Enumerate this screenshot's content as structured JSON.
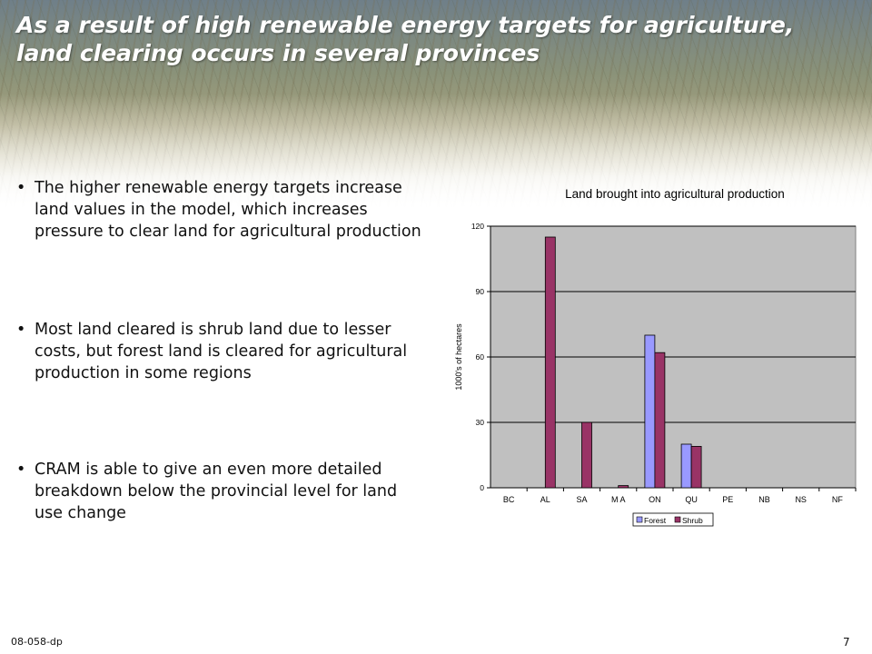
{
  "slide": {
    "title_lines": [
      "As a result of high renewable energy targets for agriculture,",
      "land clearing occurs in several provinces"
    ],
    "bullets": [
      "The higher renewable energy targets increase land values in the model, which increases pressure to clear land for agricultural production",
      "Most land cleared is shrub land due to lesser costs, but forest land is cleared for agricultural production in some regions",
      "CRAM is able to give an even more detailed breakdown below the provincial level for land use change"
    ],
    "bullet_symbol": "•",
    "footer_code": "08-058-dp",
    "page_number": "7"
  },
  "chart_data": {
    "type": "bar",
    "title": "Land brought into agricultural production",
    "ylabel": "1000's of hectares",
    "xlabel": "",
    "categories": [
      "BC",
      "AL",
      "SA",
      "M A",
      "ON",
      "QU",
      "PE",
      "NB",
      "NS",
      "NF"
    ],
    "series": [
      {
        "name": "Forest",
        "color": "#9999ff",
        "values": [
          0,
          0,
          0,
          0,
          70,
          20,
          0,
          0,
          0,
          0
        ]
      },
      {
        "name": "Shrub",
        "color": "#993366",
        "values": [
          0,
          115,
          30,
          1,
          62,
          19,
          0,
          0,
          0,
          0
        ]
      }
    ],
    "ylim": [
      0,
      120
    ],
    "yticks": [
      0,
      30,
      60,
      90,
      120
    ],
    "grid": true,
    "legend": "bottom",
    "plot_background": "#c0c0c0"
  }
}
